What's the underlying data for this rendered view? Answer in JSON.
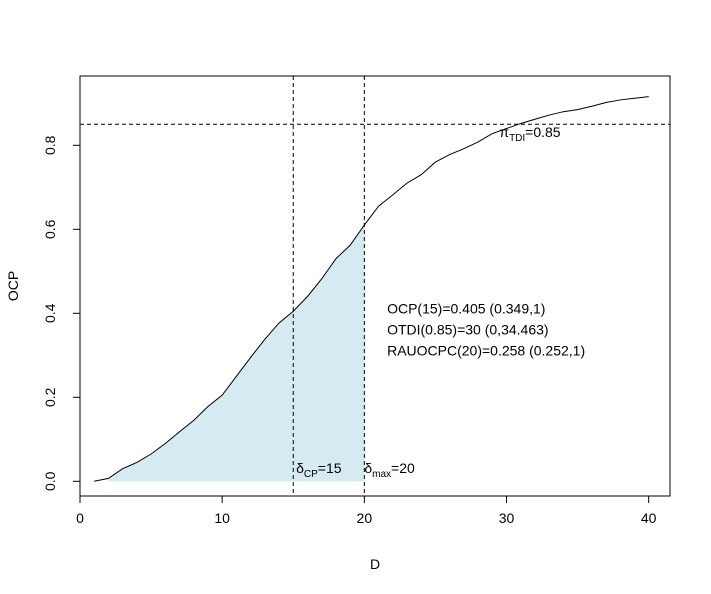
{
  "chart_data": {
    "type": "line",
    "xlabel": "D",
    "ylabel": "OCP",
    "xlim": [
      0,
      41.5
    ],
    "ylim": [
      -0.035,
      0.965
    ],
    "x_ticks": [
      0,
      10,
      20,
      30,
      40
    ],
    "y_ticks": [
      0.0,
      0.2,
      0.4,
      0.6,
      0.8
    ],
    "x_tick_labels": [
      "0",
      "10",
      "20",
      "30",
      "40"
    ],
    "y_tick_labels": [
      "0.0",
      "0.2",
      "0.4",
      "0.6",
      "0.8"
    ],
    "grid": false,
    "legend": "none",
    "curve": {
      "x": [
        1,
        2,
        3,
        4,
        5,
        6,
        7,
        8,
        9,
        10,
        11,
        12,
        13,
        14,
        15,
        16,
        17,
        18,
        19,
        20,
        21,
        22,
        23,
        24,
        25,
        26,
        27,
        28,
        29,
        30,
        31,
        32,
        33,
        34,
        35,
        36,
        37,
        38,
        39,
        40
      ],
      "y": [
        0.0,
        0.007,
        0.03,
        0.045,
        0.065,
        0.09,
        0.118,
        0.145,
        0.178,
        0.205,
        0.25,
        0.295,
        0.338,
        0.377,
        0.405,
        0.44,
        0.482,
        0.53,
        0.562,
        0.61,
        0.655,
        0.682,
        0.71,
        0.73,
        0.76,
        0.778,
        0.792,
        0.808,
        0.828,
        0.84,
        0.852,
        0.862,
        0.872,
        0.88,
        0.885,
        0.893,
        0.902,
        0.908,
        0.912,
        0.916
      ],
      "color": "#000000"
    },
    "shaded_region": {
      "x_from": 2,
      "x_to": 20,
      "color": "#d6eaf2"
    },
    "reference_lines": {
      "horizontal_y": 0.85,
      "vertical_x": [
        15,
        20
      ]
    },
    "annotations": {
      "pi_tdi": {
        "symbol": "π",
        "sub": "TDI",
        "rest": "=0.85",
        "x": 29.5,
        "y": 0.82
      },
      "delta_cp": {
        "symbol": "δ",
        "sub": "CP",
        "rest": "=15",
        "x": 15.2,
        "y": 0.02
      },
      "delta_max": {
        "symbol": "δ",
        "sub": "max",
        "rest": "=20",
        "x": 20.0,
        "y": 0.02
      },
      "stats": [
        {
          "text": "OCP(15)=0.405 (0.349,1)",
          "x": 21.6,
          "y": 0.4
        },
        {
          "text": "OTDI(0.85)=30 (0,34.463)",
          "x": 21.6,
          "y": 0.35
        },
        {
          "text": "RAUOCPC(20)=0.258 (0.252,1)",
          "x": 21.6,
          "y": 0.3
        }
      ]
    }
  }
}
